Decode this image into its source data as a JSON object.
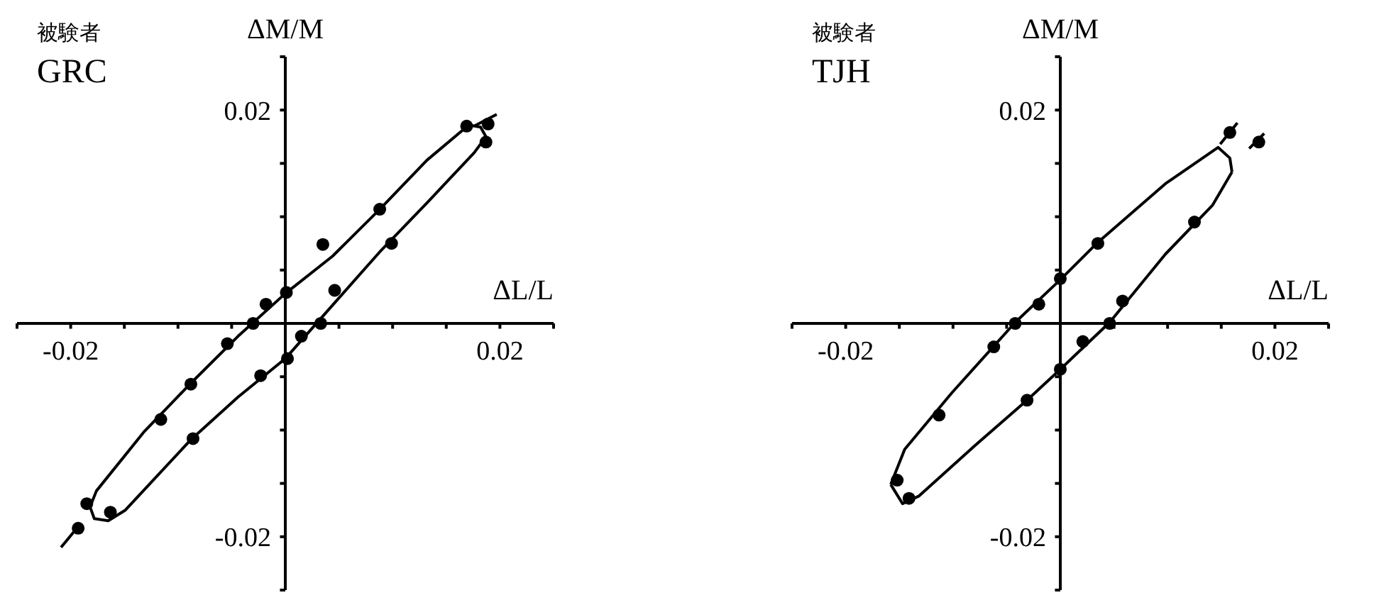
{
  "chart_data": [
    {
      "type": "scatter",
      "title": "被験者",
      "subtitle": "GRC",
      "xlabel": "ΔL/L",
      "ylabel": "ΔM/M",
      "xlim": [
        -0.025,
        0.025
      ],
      "ylim": [
        -0.025,
        0.025
      ],
      "xticks": [
        {
          "value": -0.025,
          "label": null
        },
        {
          "value": -0.02,
          "label": "-0.02"
        },
        {
          "value": -0.015,
          "label": null
        },
        {
          "value": -0.01,
          "label": null
        },
        {
          "value": -0.005,
          "label": null
        },
        {
          "value": 0.005,
          "label": null
        },
        {
          "value": 0.01,
          "label": null
        },
        {
          "value": 0.015,
          "label": null
        },
        {
          "value": 0.02,
          "label": "0.02"
        },
        {
          "value": 0.025,
          "label": null
        }
      ],
      "yticks": [
        {
          "value": -0.025,
          "label": null
        },
        {
          "value": -0.02,
          "label": "-0.02"
        },
        {
          "value": -0.015,
          "label": null
        },
        {
          "value": -0.01,
          "label": null
        },
        {
          "value": -0.005,
          "label": null
        },
        {
          "value": 0.005,
          "label": null
        },
        {
          "value": 0.01,
          "label": null
        },
        {
          "value": 0.015,
          "label": null
        },
        {
          "value": 0.02,
          "label": "0.02"
        },
        {
          "value": 0.025,
          "label": null
        }
      ],
      "grid": false,
      "legend": false,
      "series": [
        {
          "type": "scatter",
          "color": "#000000",
          "marker": "circle",
          "x": [
            0.0189,
            0.0169,
            0.0187,
            0.0088,
            0.0099,
            0.0035,
            0.0046,
            0.0001,
            -0.0018,
            -0.003,
            0.0033,
            0.0015,
            -0.0054,
            0.0002,
            -0.0023,
            -0.0088,
            -0.0116,
            -0.0086,
            -0.0185,
            -0.0163,
            -0.0193
          ],
          "values": [
            0.0187,
            0.0185,
            0.017,
            0.0107,
            0.0075,
            0.0074,
            0.0031,
            0.0029,
            0.0018,
            0.0,
            0.0,
            -0.0012,
            -0.0019,
            -0.0033,
            -0.0049,
            -0.0057,
            -0.009,
            -0.0108,
            -0.0169,
            -0.0177,
            -0.0192
          ]
        },
        {
          "type": "line",
          "color": "#000000",
          "marker": "none",
          "x": [
            -0.0182,
            -0.0176,
            -0.0132,
            -0.0088,
            -0.0044,
            0,
            0.0044,
            0.0088,
            0.0132,
            0.0171,
            0.0182,
            0.0187
          ],
          "values": [
            -0.0172,
            -0.0157,
            -0.0102,
            -0.0056,
            -0.0012,
            0.0028,
            0.0063,
            0.0107,
            0.0153,
            0.0186,
            0.0184,
            0.0175
          ]
        },
        {
          "type": "line",
          "color": "#000000",
          "marker": "none",
          "x": [
            -0.0182,
            -0.0178,
            -0.0165,
            -0.0149,
            -0.0088,
            -0.0044,
            0,
            0.0044,
            0.0088,
            0.0132,
            0.0176,
            0.0187
          ],
          "values": [
            -0.0172,
            -0.0183,
            -0.0185,
            -0.0175,
            -0.0109,
            -0.0069,
            -0.0033,
            0.0017,
            0.0067,
            0.0113,
            0.016,
            0.0175
          ]
        },
        {
          "type": "line",
          "color": "#000000",
          "marker": "none",
          "x": [
            0.0176,
            0.0197
          ],
          "values": [
            0.0185,
            0.0196
          ]
        },
        {
          "type": "line",
          "color": "#000000",
          "marker": "none",
          "x": [
            -0.0209,
            -0.0191
          ],
          "values": [
            -0.021,
            -0.0188
          ]
        }
      ]
    },
    {
      "type": "scatter",
      "title": "被験者",
      "subtitle": "TJH",
      "xlabel": "ΔL/L",
      "ylabel": "ΔM/M",
      "xlim": [
        -0.025,
        0.025
      ],
      "ylim": [
        -0.025,
        0.025
      ],
      "xticks": [
        {
          "value": -0.025,
          "label": null
        },
        {
          "value": -0.02,
          "label": "-0.02"
        },
        {
          "value": -0.015,
          "label": null
        },
        {
          "value": -0.01,
          "label": null
        },
        {
          "value": -0.005,
          "label": null
        },
        {
          "value": 0.005,
          "label": null
        },
        {
          "value": 0.01,
          "label": null
        },
        {
          "value": 0.015,
          "label": null
        },
        {
          "value": 0.02,
          "label": "0.02"
        },
        {
          "value": 0.025,
          "label": null
        }
      ],
      "yticks": [
        {
          "value": -0.025,
          "label": null
        },
        {
          "value": -0.02,
          "label": "-0.02"
        },
        {
          "value": -0.015,
          "label": null
        },
        {
          "value": -0.01,
          "label": null
        },
        {
          "value": -0.005,
          "label": null
        },
        {
          "value": 0.005,
          "label": null
        },
        {
          "value": 0.01,
          "label": null
        },
        {
          "value": 0.015,
          "label": null
        },
        {
          "value": 0.02,
          "label": "0.02"
        },
        {
          "value": 0.025,
          "label": null
        }
      ],
      "grid": false,
      "legend": false,
      "series": [
        {
          "type": "scatter",
          "color": "#000000",
          "marker": "circle",
          "x": [
            0.0158,
            0.0185,
            0.0125,
            0.0035,
            0,
            0.0058,
            -0.002,
            -0.0042,
            0.0046,
            0.0021,
            -0.0062,
            0,
            -0.0031,
            -0.0113,
            -0.0152,
            -0.0141
          ],
          "values": [
            0.0179,
            0.017,
            0.0095,
            0.0075,
            0.0042,
            0.0021,
            0.0018,
            0,
            0,
            -0.0017,
            -0.0022,
            -0.0043,
            -0.0072,
            -0.0086,
            -0.0147,
            -0.0164
          ]
        },
        {
          "type": "line",
          "color": "#000000",
          "marker": "none",
          "x": [
            -0.0158,
            -0.0145,
            -0.0101,
            -0.0042,
            0,
            0.0035,
            0.0098,
            0.0147,
            0.0158,
            0.016
          ],
          "values": [
            -0.0151,
            -0.0118,
            -0.0065,
            0.0001,
            0.0041,
            0.0076,
            0.0131,
            0.0165,
            0.0155,
            0.0142
          ]
        },
        {
          "type": "line",
          "color": "#000000",
          "marker": "none",
          "x": [
            -0.0158,
            -0.0147,
            -0.0132,
            -0.0079,
            -0.0031,
            0,
            0.0046,
            0.0098,
            0.0142,
            0.016
          ],
          "values": [
            -0.0151,
            -0.0169,
            -0.0162,
            -0.0114,
            -0.0072,
            -0.0043,
            0.0001,
            0.0065,
            0.0111,
            0.0142
          ]
        },
        {
          "type": "line",
          "color": "#000000",
          "marker": "none",
          "x": [
            0.0149,
            0.0165
          ],
          "values": [
            0.0168,
            0.0188
          ]
        },
        {
          "type": "line",
          "color": "#000000",
          "marker": "none",
          "x": [
            0.0176,
            0.019
          ],
          "values": [
            0.0164,
            0.0178
          ]
        }
      ]
    }
  ]
}
